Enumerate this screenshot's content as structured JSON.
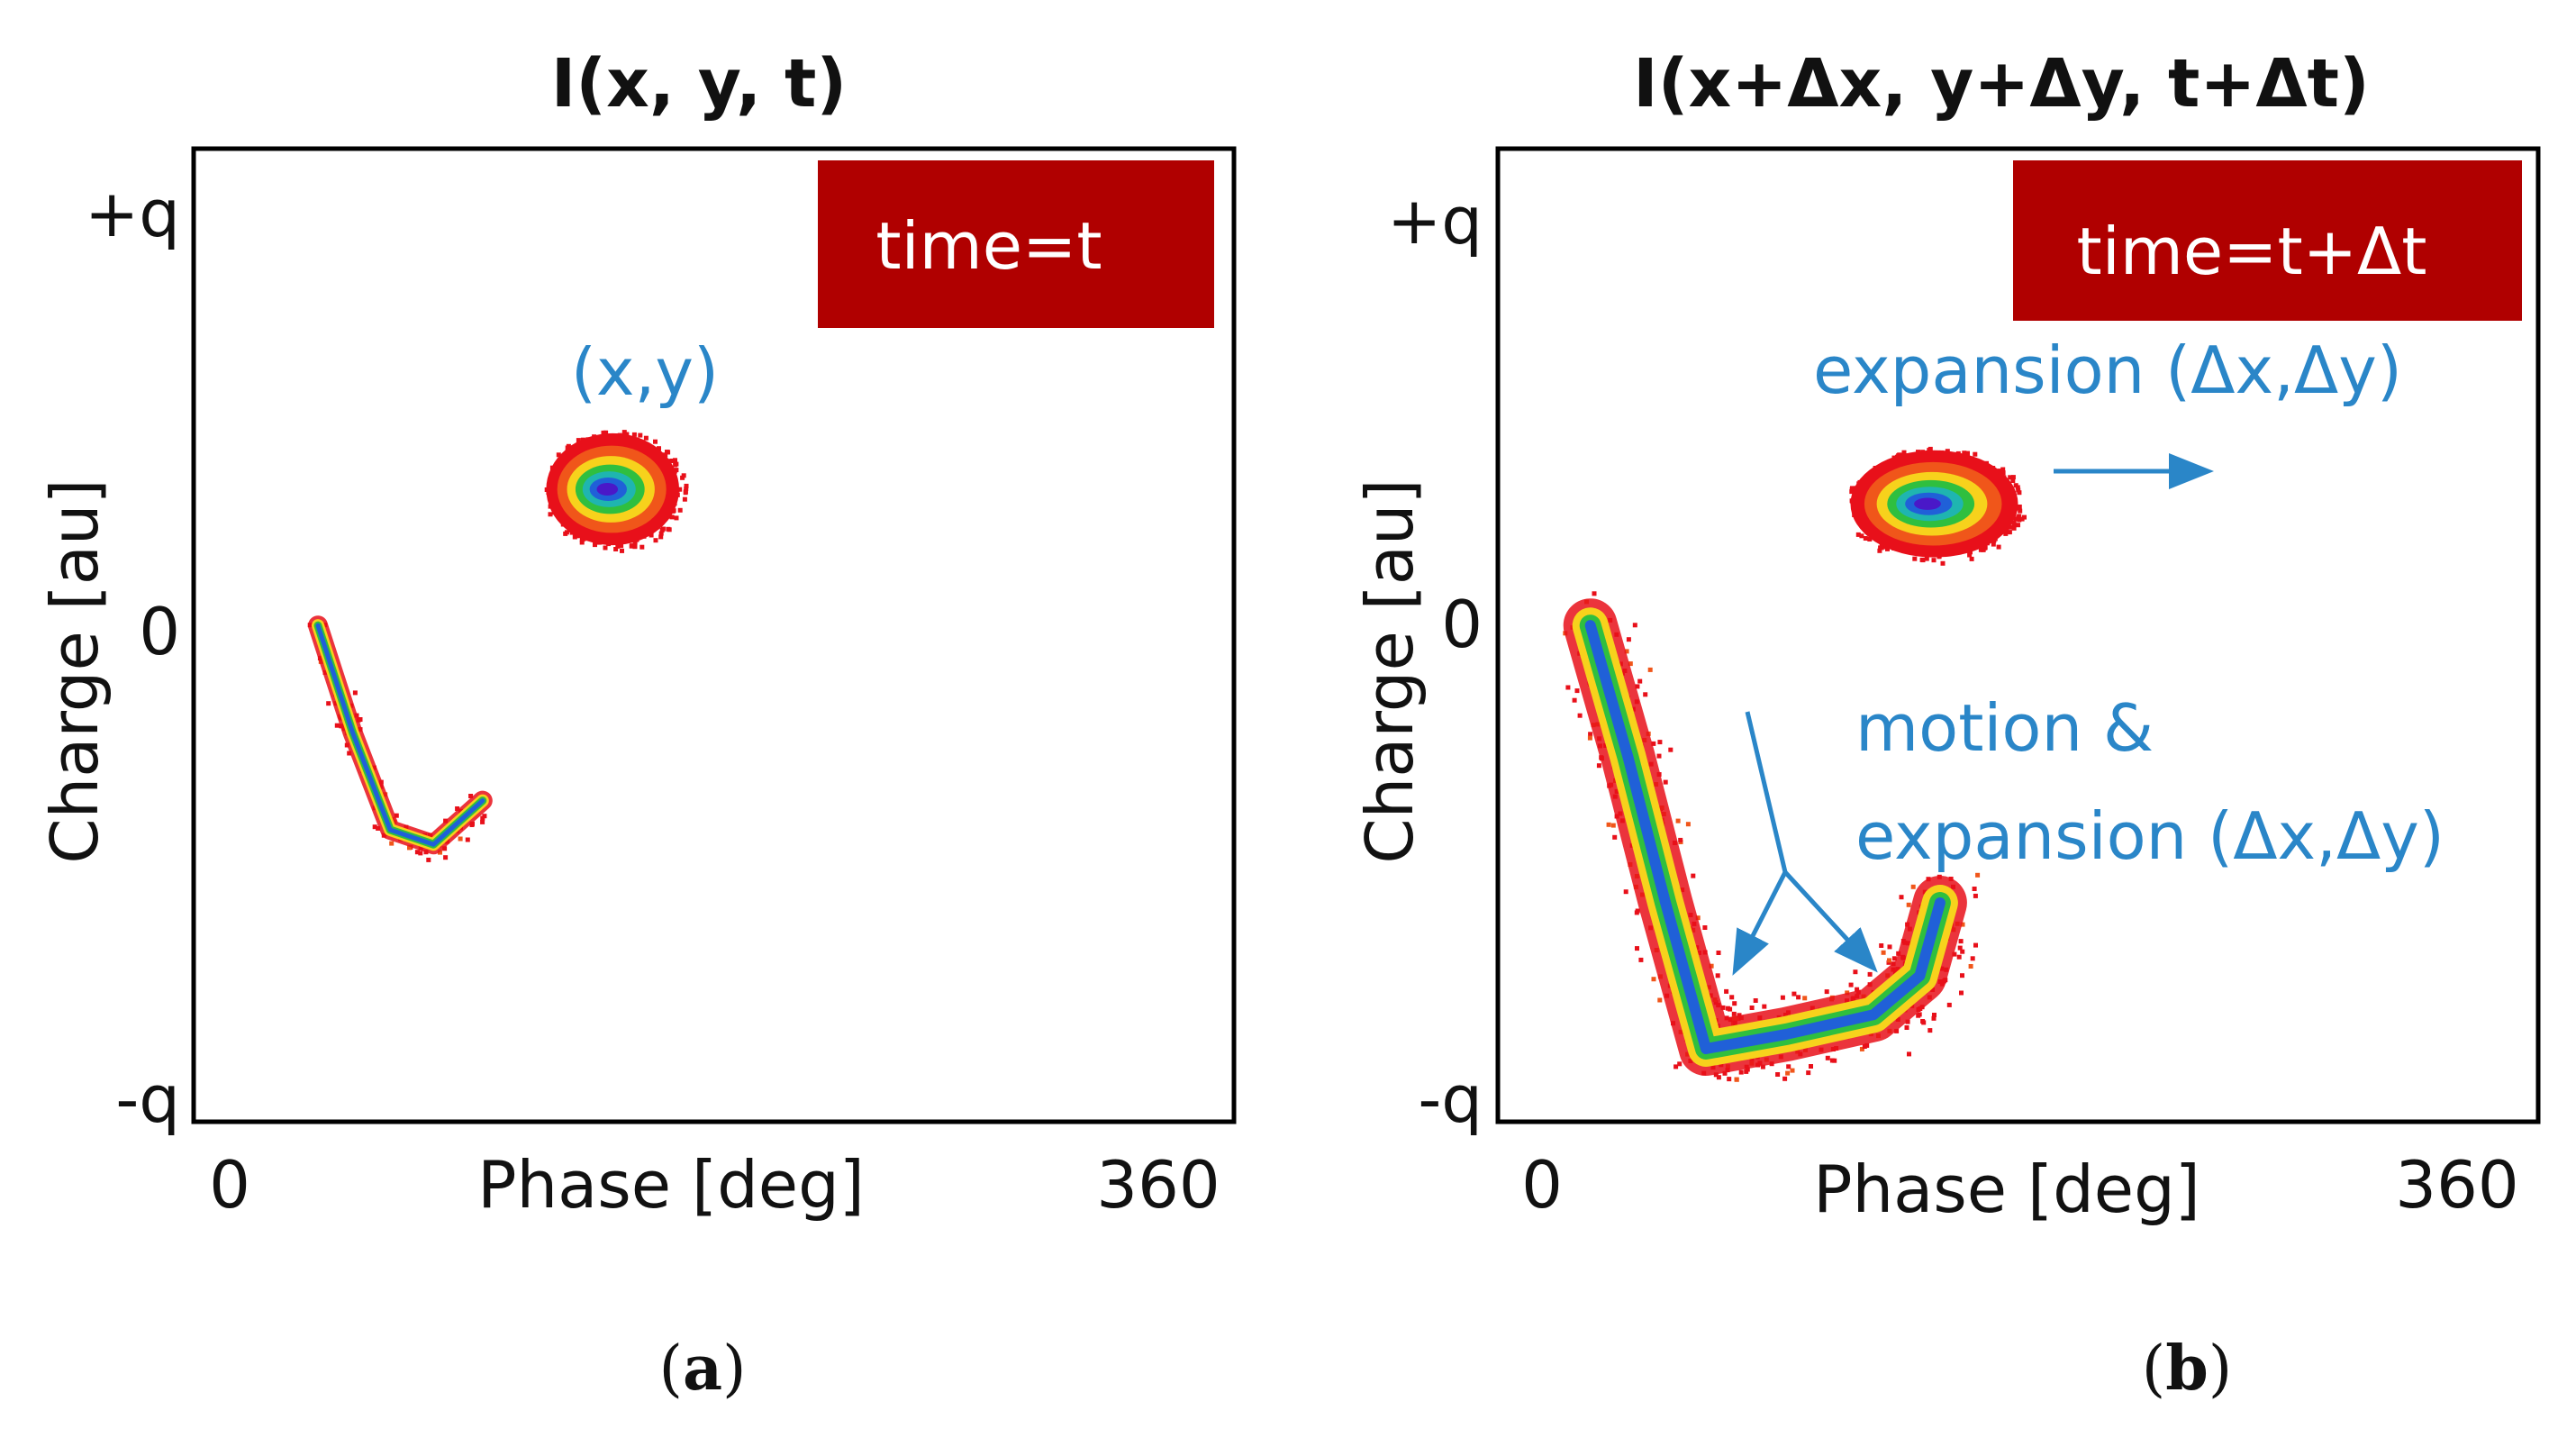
{
  "colors": {
    "box": "#b00000",
    "annotation": "#2a86c8",
    "frame": "#000000",
    "heat": [
      "#e8101a",
      "#f0561a",
      "#f7d21c",
      "#2fbf3f",
      "#1fb5b0",
      "#2060d8",
      "#4a18c8"
    ]
  },
  "chart_data": [
    {
      "panel": "a",
      "type": "scatter",
      "title": "I(x, y, t)",
      "xlabel": "Phase [deg]",
      "ylabel": "Charge [au]",
      "x_ticks": [
        "0",
        "360"
      ],
      "y_ticks": [
        "+q",
        "0",
        "-q"
      ],
      "xlim": [
        0,
        360
      ],
      "ylim": [
        -1,
        1
      ],
      "box_label": "time=t",
      "annotations": [
        {
          "id": "xy",
          "text": "(x,y)"
        }
      ],
      "caption": "a",
      "clusters": [
        {
          "name": "blob",
          "center": [
            145,
            0.3
          ],
          "width_deg": 46,
          "height": 0.23
        },
        {
          "name": "tail",
          "path": [
            [
              43,
              0.02
            ],
            [
              55,
              -0.2
            ],
            [
              68,
              -0.4
            ],
            [
              83,
              -0.43
            ],
            [
              100,
              -0.34
            ]
          ]
        }
      ]
    },
    {
      "panel": "b",
      "type": "scatter",
      "title": "I(x+Δx, y+Δy, t+Δt)",
      "xlabel": "Phase [deg]",
      "ylabel": "Charge [au]",
      "x_ticks": [
        "0",
        "360"
      ],
      "y_ticks": [
        "+q",
        "0",
        "-q"
      ],
      "xlim": [
        0,
        360
      ],
      "ylim": [
        -1,
        1
      ],
      "box_label": "time=t+Δt",
      "annotations": [
        {
          "id": "exp",
          "text": "expansion (Δx,Δy)"
        },
        {
          "id": "motion1",
          "text": "motion &"
        },
        {
          "id": "motion2",
          "text": "expansion (Δx,Δy)"
        }
      ],
      "caption": "b",
      "clusters": [
        {
          "name": "blob",
          "center": [
            151,
            0.27
          ],
          "width_deg": 58,
          "height": 0.22
        },
        {
          "name": "tail",
          "path": [
            [
              32,
              0.02
            ],
            [
              45,
              -0.25
            ],
            [
              58,
              -0.55
            ],
            [
              72,
              -0.85
            ],
            [
              100,
              -0.82
            ],
            [
              130,
              -0.78
            ],
            [
              146,
              -0.7
            ],
            [
              153,
              -0.55
            ]
          ]
        }
      ]
    }
  ]
}
